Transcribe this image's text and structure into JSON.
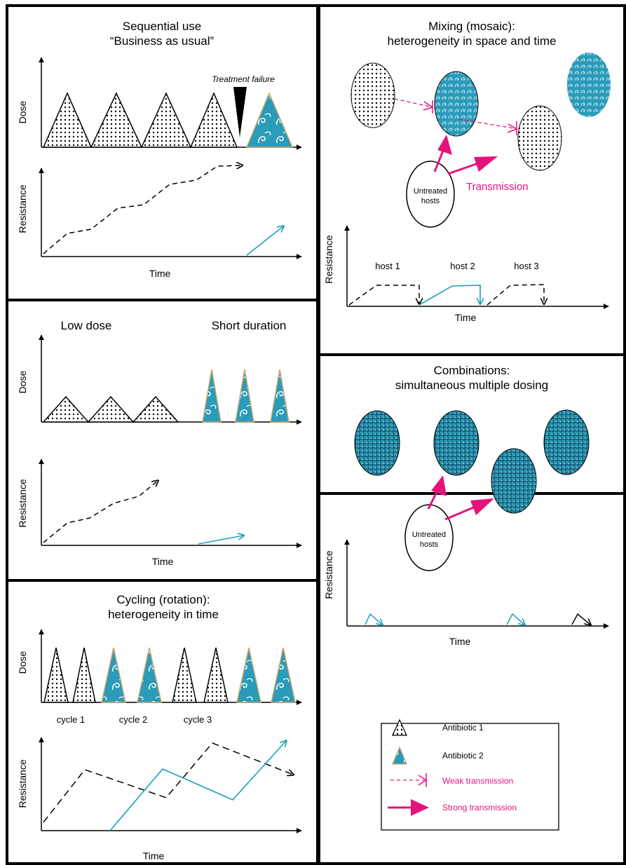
{
  "colors": {
    "border": "#000000",
    "antibiotic2": "#2a9bb9",
    "antibiotic2_line": "#1a9fbf",
    "antibiotic2_edge": "#c9a46a",
    "magenta": "#e6127c",
    "dots": "#000000"
  },
  "icons": {
    "antibiotic1": "dotted-triangle",
    "antibiotic2": "swirl-triangle"
  },
  "panels": {
    "sequential": {
      "title1": "Sequential use",
      "title2": "“Business as usual”",
      "treatment_failure": "Treatment failure",
      "dose_label": "Dose",
      "resistance_label": "Resistance",
      "time_label": "Time"
    },
    "low_dose": {
      "low_dose": "Low dose",
      "short_duration": "Short duration",
      "dose_label": "Dose",
      "resistance_label": "Resistance",
      "time_label": "Time"
    },
    "cycling": {
      "title1": "Cycling (rotation):",
      "title2": "heterogeneity in time",
      "dose_label": "Dose",
      "cycles": [
        "cycle 1",
        "cycle 2",
        "cycle 3"
      ],
      "resistance_label": "Resistance",
      "time_label": "Time"
    },
    "mixing": {
      "title1": "Mixing (mosaic):",
      "title2": "heterogeneity in space and time",
      "untreated1": "Untreated",
      "untreated2": "hosts",
      "transmission": "Transmission",
      "resistance_label": "Resistance",
      "hosts": [
        "host 1",
        "host 2",
        "host 3"
      ],
      "time_label": "Time"
    },
    "combinations": {
      "title1": "Combinations:",
      "title2": "simultaneous multiple dosing",
      "untreated1": "Untreated",
      "untreated2": "hosts",
      "resistance_label": "Resistance",
      "time_label": "Time"
    }
  },
  "legend": {
    "antibiotic1": "Antibiotic 1",
    "antibiotic2": "Antibiotic 2",
    "weak": "Weak transmission",
    "strong": "Strong transmission"
  }
}
